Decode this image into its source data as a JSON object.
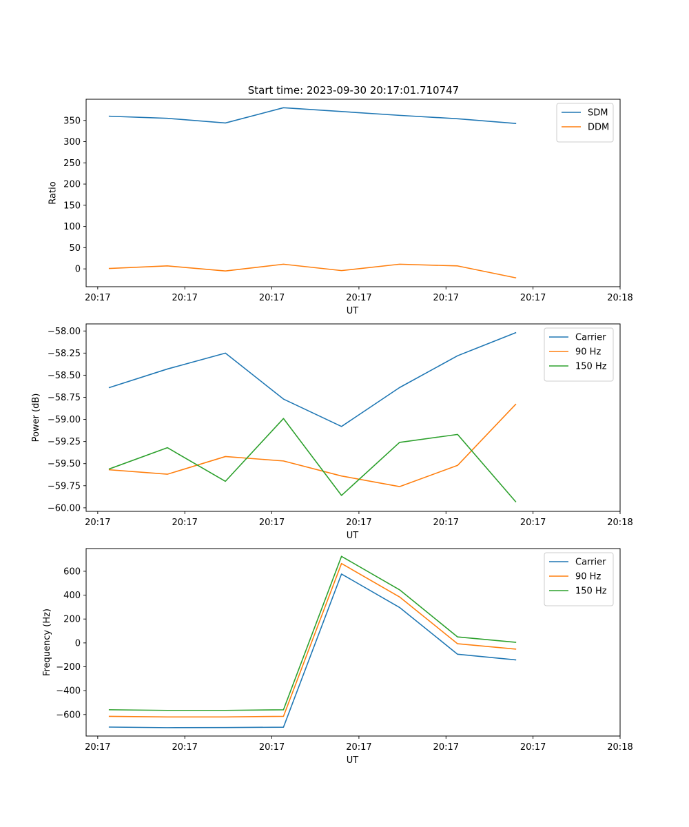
{
  "title": "Start time: 2023-09-30 20:17:01.710747",
  "colors": {
    "blue": "#1f77b4",
    "orange": "#ff7f0e",
    "green": "#2ca02c"
  },
  "chart_data": [
    {
      "type": "line",
      "name": "ratio",
      "title": "Start time: 2023-09-30 20:17:01.710747",
      "xlabel": "UT",
      "ylabel": "Ratio",
      "xlim": [
        -0.4,
        8.8
      ],
      "ylim": [
        -42,
        400
      ],
      "x_ticks": [
        -0.2,
        1.3,
        2.8,
        4.3,
        5.8,
        7.3,
        8.8
      ],
      "x_tick_labels": [
        "20:17",
        "20:17",
        "20:17",
        "20:17",
        "20:17",
        "20:17",
        "20:18"
      ],
      "y_ticks": [
        0,
        50,
        100,
        150,
        200,
        250,
        300,
        350
      ],
      "y_tick_labels": [
        "0",
        "50",
        "100",
        "150",
        "200",
        "250",
        "300",
        "350"
      ],
      "x": [
        0,
        1,
        2,
        3,
        4,
        5,
        6,
        7
      ],
      "legend_position": "top-right",
      "series": [
        {
          "name": "SDM",
          "color": "#1f77b4",
          "values": [
            360,
            355,
            344,
            380,
            371,
            362,
            354,
            343
          ]
        },
        {
          "name": "DDM",
          "color": "#ff7f0e",
          "values": [
            1,
            7,
            -5,
            11,
            -4,
            11,
            7,
            -21
          ]
        }
      ]
    },
    {
      "type": "line",
      "name": "power",
      "title": "",
      "xlabel": "UT",
      "ylabel": "Power (dB)",
      "xlim": [
        -0.4,
        8.8
      ],
      "ylim": [
        -60.04,
        -57.92
      ],
      "x_ticks": [
        -0.2,
        1.3,
        2.8,
        4.3,
        5.8,
        7.3,
        8.8
      ],
      "x_tick_labels": [
        "20:17",
        "20:17",
        "20:17",
        "20:17",
        "20:17",
        "20:17",
        "20:18"
      ],
      "y_ticks": [
        -60.0,
        -59.75,
        -59.5,
        -59.25,
        -59.0,
        -58.75,
        -58.5,
        -58.25,
        -58.0
      ],
      "y_tick_labels": [
        "−60.00",
        "−59.75",
        "−59.50",
        "−59.25",
        "−59.00",
        "−58.75",
        "−58.50",
        "−58.25",
        "−58.00"
      ],
      "x": [
        0,
        1,
        2,
        3,
        4,
        5,
        6,
        7
      ],
      "legend_position": "top-right",
      "series": [
        {
          "name": "Carrier",
          "color": "#1f77b4",
          "values": [
            -58.64,
            -58.43,
            -58.25,
            -58.77,
            -59.08,
            -58.64,
            -58.28,
            -58.02
          ]
        },
        {
          "name": "90 Hz",
          "color": "#ff7f0e",
          "values": [
            -59.57,
            -59.62,
            -59.42,
            -59.47,
            -59.64,
            -59.76,
            -59.52,
            -58.83
          ]
        },
        {
          "name": "150 Hz",
          "color": "#2ca02c",
          "values": [
            -59.56,
            -59.32,
            -59.7,
            -58.99,
            -59.86,
            -59.26,
            -59.17,
            -59.93
          ]
        }
      ]
    },
    {
      "type": "line",
      "name": "frequency",
      "title": "",
      "xlabel": "UT",
      "ylabel": "Frequency (Hz)",
      "xlim": [
        -0.4,
        8.8
      ],
      "ylim": [
        -780,
        790
      ],
      "x_ticks": [
        -0.2,
        1.3,
        2.8,
        4.3,
        5.8,
        7.3,
        8.8
      ],
      "x_tick_labels": [
        "20:17",
        "20:17",
        "20:17",
        "20:17",
        "20:17",
        "20:17",
        "20:18"
      ],
      "y_ticks": [
        -600,
        -400,
        -200,
        0,
        200,
        400,
        600
      ],
      "y_tick_labels": [
        "−600",
        "−400",
        "−200",
        "0",
        "200",
        "400",
        "600"
      ],
      "x": [
        0,
        1,
        2,
        3,
        4,
        5,
        6,
        7
      ],
      "legend_position": "top-right",
      "series": [
        {
          "name": "Carrier",
          "color": "#1f77b4",
          "values": [
            -705,
            -710,
            -709,
            -706,
            577,
            297,
            -95,
            -142
          ]
        },
        {
          "name": "90 Hz",
          "color": "#ff7f0e",
          "values": [
            -615,
            -620,
            -620,
            -615,
            665,
            385,
            -7,
            -52
          ]
        },
        {
          "name": "150 Hz",
          "color": "#2ca02c",
          "values": [
            -560,
            -565,
            -565,
            -560,
            725,
            445,
            50,
            5
          ]
        }
      ]
    }
  ]
}
